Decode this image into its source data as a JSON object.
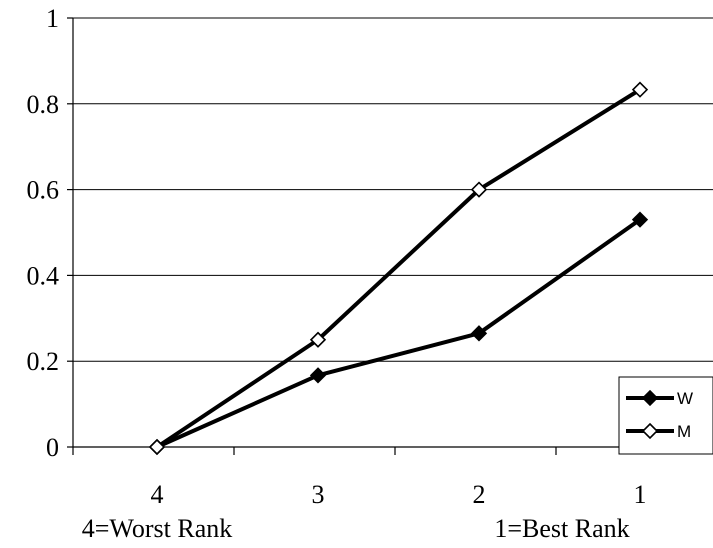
{
  "chart_data": {
    "type": "line",
    "categories": [
      "4",
      "3",
      "2",
      "1"
    ],
    "x_tick_labels": [
      "4",
      "3",
      "2",
      "1"
    ],
    "xlabel_left": "4=Worst Rank",
    "xlabel_right": "1=Best Rank",
    "ylabel": "",
    "title": "",
    "ylim": [
      0,
      1
    ],
    "y_ticks": [
      0,
      0.2,
      0.4,
      0.6,
      0.8,
      1
    ],
    "y_tick_labels": [
      "0",
      "0.2",
      "0.4",
      "0.6",
      "0.8",
      "1"
    ],
    "grid": "horizontal",
    "legend_position": "right",
    "series": [
      {
        "name": "W",
        "values": [
          0,
          0.167,
          0.265,
          0.53
        ],
        "marker": "filled-diamond",
        "color": "#000000"
      },
      {
        "name": "M",
        "values": [
          0,
          0.25,
          0.6,
          0.833
        ],
        "marker": "open-diamond",
        "color": "#000000"
      }
    ]
  }
}
